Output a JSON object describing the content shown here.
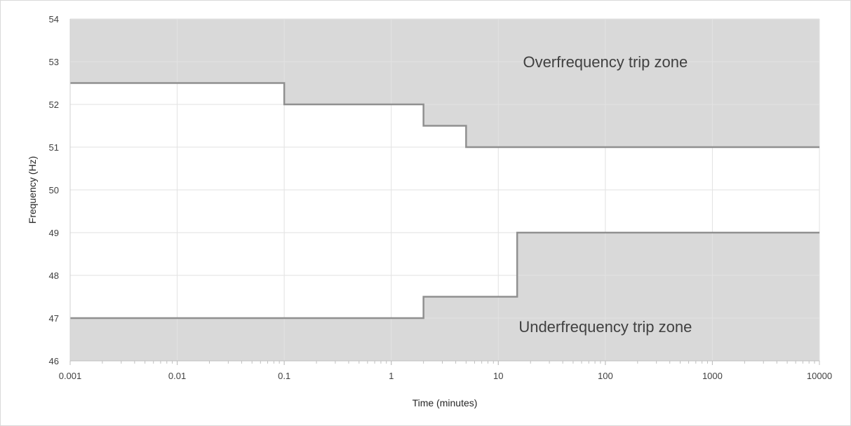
{
  "chart_data": {
    "type": "area",
    "title": "",
    "xlabel": "Time (minutes)",
    "ylabel": "Frequency (Hz)",
    "x_scale": "log",
    "xlim": [
      0.001,
      10000
    ],
    "ylim": [
      46,
      54
    ],
    "x_ticks": [
      {
        "value": 0.001,
        "label": "0.001"
      },
      {
        "value": 0.01,
        "label": "0.01"
      },
      {
        "value": 0.1,
        "label": "0.1"
      },
      {
        "value": 1,
        "label": "1"
      },
      {
        "value": 10,
        "label": "10"
      },
      {
        "value": 100,
        "label": "100"
      },
      {
        "value": 1000,
        "label": "1000"
      },
      {
        "value": 10000,
        "label": "10000"
      }
    ],
    "y_ticks": [
      46,
      47,
      48,
      49,
      50,
      51,
      52,
      53,
      54
    ],
    "grid": true,
    "series": [
      {
        "points": [
          [
            0.001,
            52.5
          ],
          [
            0.1,
            52.5
          ],
          [
            0.1,
            52
          ],
          [
            2,
            52
          ],
          [
            2,
            51.5
          ],
          [
            5,
            51.5
          ],
          [
            5,
            51
          ],
          [
            10000,
            51
          ]
        ],
        "fill": "above",
        "fill_color": "#d9d9d9",
        "line_color": "#909090"
      },
      {
        "points": [
          [
            0.001,
            47
          ],
          [
            2,
            47
          ],
          [
            2,
            47.5
          ],
          [
            15,
            47.5
          ],
          [
            15,
            49
          ],
          [
            10000,
            49
          ]
        ],
        "fill": "below",
        "fill_color": "#d9d9d9",
        "line_color": "#909090"
      }
    ],
    "annotations": [
      {
        "text": "Overfrequency  trip zone",
        "x": 100,
        "y": 53
      },
      {
        "text": "Underfrequency  trip zone",
        "x": 100,
        "y": 46.8
      }
    ]
  }
}
